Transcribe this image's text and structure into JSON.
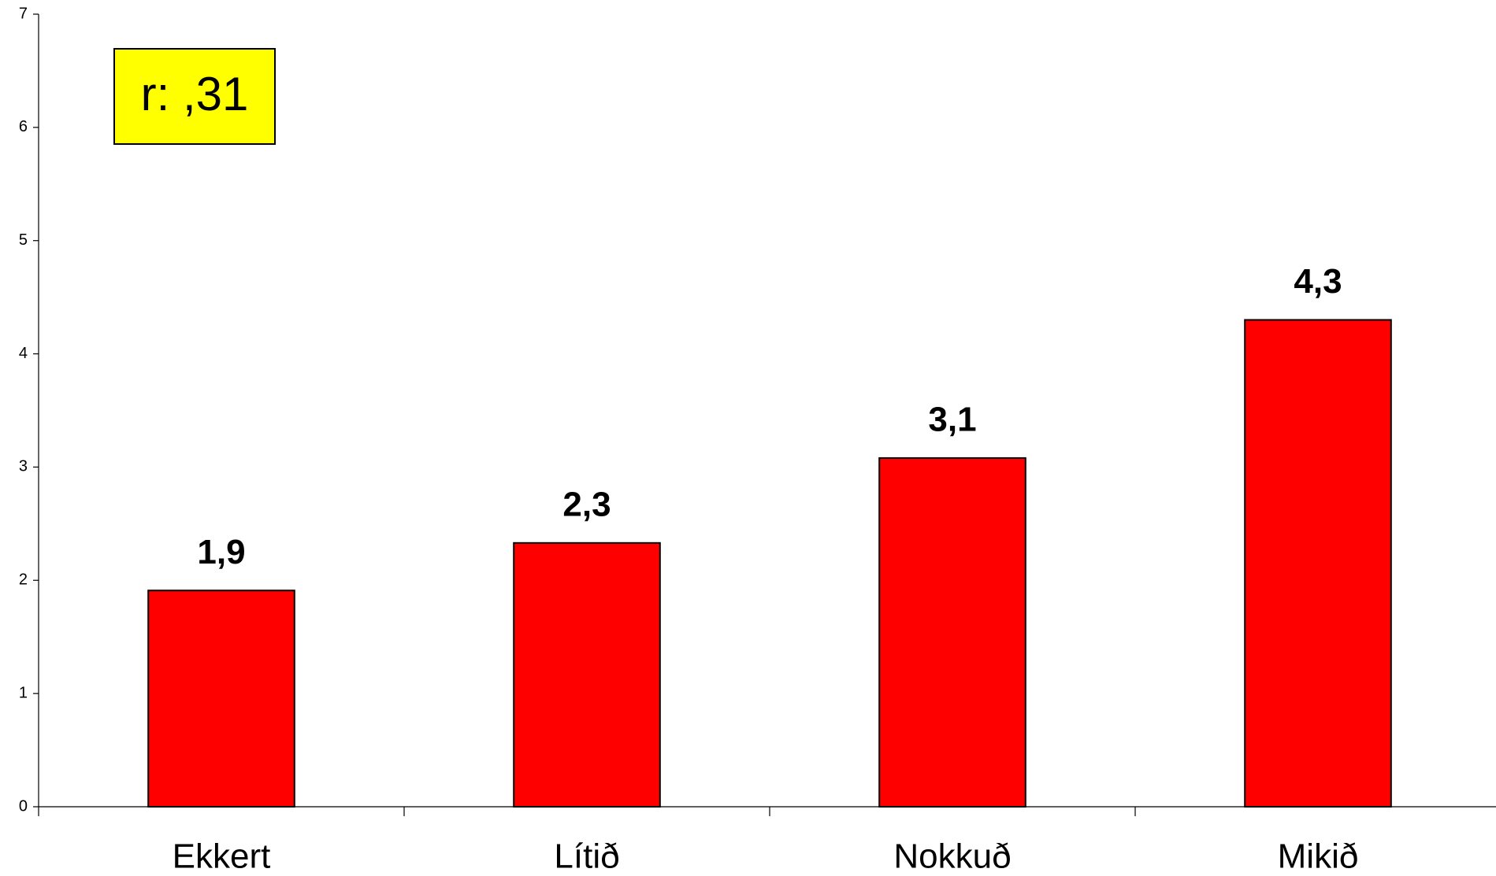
{
  "chart_data": {
    "type": "bar",
    "annotation": "r: ,31",
    "categories": [
      "Ekkert",
      "Lítið",
      "Nokkuð",
      "Mikið"
    ],
    "values": [
      1.91,
      2.33,
      3.08,
      4.3
    ],
    "value_labels": [
      "1,9",
      "2,3",
      "3,1",
      "4,3"
    ],
    "color": "#ff0000",
    "ylim": [
      0,
      7
    ],
    "yticks": [
      0,
      1,
      2,
      3,
      4,
      5,
      6,
      7
    ],
    "grid": false
  }
}
